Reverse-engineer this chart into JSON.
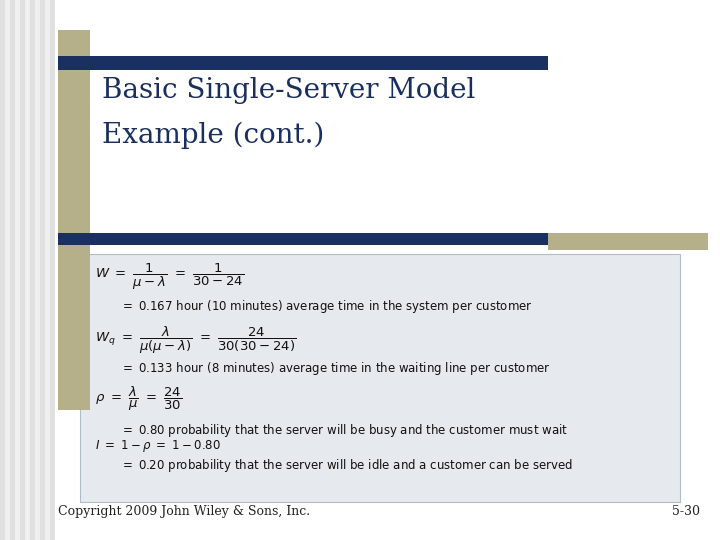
{
  "title_line1": "Basic Single-Server Model",
  "title_line2": "Example (cont.)",
  "title_color": "#1a2f5e",
  "title_fontsize": 20,
  "accent_color_olive": "#b5b08a",
  "accent_color_navy": "#1a3060",
  "bg_color": "#ffffff",
  "content_bg": "#e6eaee",
  "content_border": "#b0bcc8",
  "footer_left": "Copyright 2009 John Wiley & Sons, Inc.",
  "footer_right": "5-30",
  "footer_fontsize": 9,
  "footer_color": "#222222",
  "math_color": "#111111",
  "text_color": "#111111",
  "stripe_bg": "#d8d8d8"
}
